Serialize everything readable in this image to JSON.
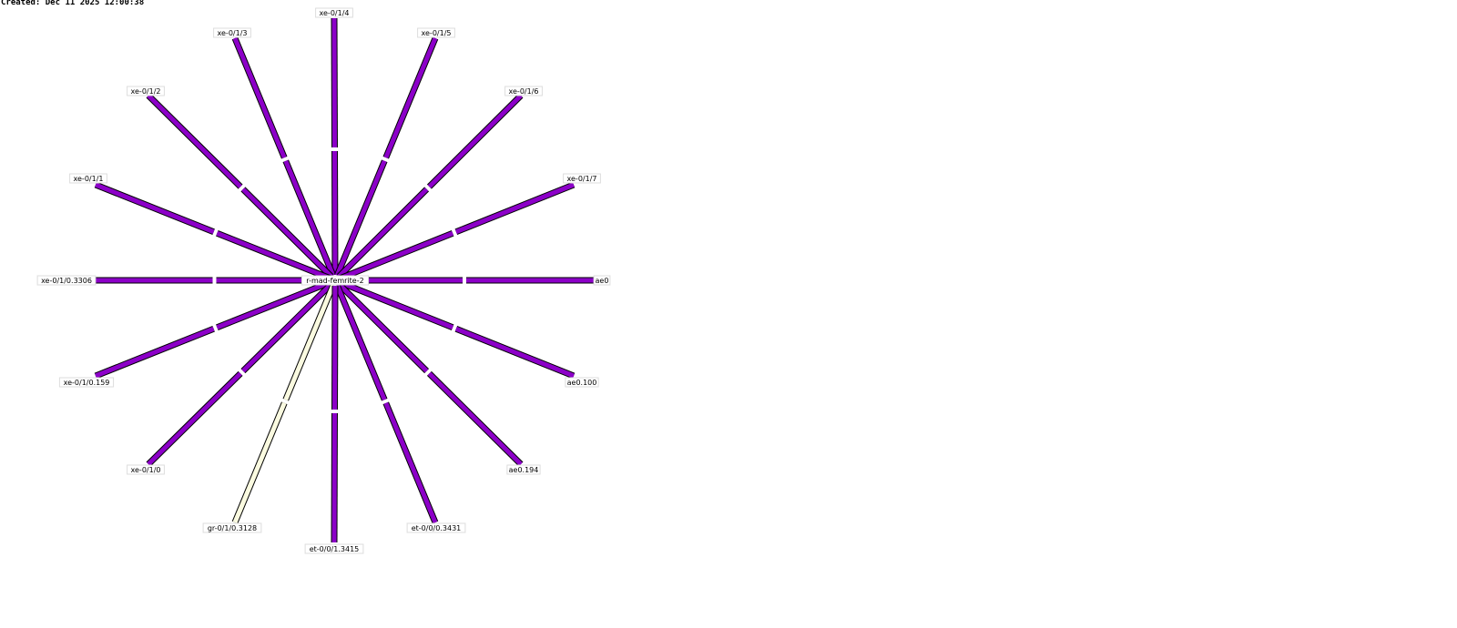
{
  "created": "Created: Dec 11 2025 12:00:38",
  "colors": {
    "link": "#8c00c8",
    "link_low": "#fafae0",
    "outline": "#000000"
  },
  "center_node": "r-mad-femrite-2",
  "links": [
    {
      "label": "xe-0/1/4",
      "color": "#8c00c8"
    },
    {
      "label": "xe-0/1/3",
      "color": "#8c00c8"
    },
    {
      "label": "xe-0/1/5",
      "color": "#8c00c8"
    },
    {
      "label": "xe-0/1/2",
      "color": "#8c00c8"
    },
    {
      "label": "xe-0/1/6",
      "color": "#8c00c8"
    },
    {
      "label": "xe-0/1/1",
      "color": "#8c00c8"
    },
    {
      "label": "xe-0/1/7",
      "color": "#8c00c8"
    },
    {
      "label": "xe-0/1/0.3306",
      "color": "#8c00c8"
    },
    {
      "label": "ae0",
      "color": "#8c00c8"
    },
    {
      "label": "xe-0/1/0.159",
      "color": "#8c00c8"
    },
    {
      "label": "ae0.100",
      "color": "#8c00c8"
    },
    {
      "label": "xe-0/1/0",
      "color": "#8c00c8"
    },
    {
      "label": "ae0.194",
      "color": "#8c00c8"
    },
    {
      "label": "gr-0/1/0.3128",
      "color": "#fafae0"
    },
    {
      "label": "et-0/0/0.3431",
      "color": "#8c00c8"
    },
    {
      "label": "et-0/0/1.3415",
      "color": "#8c00c8"
    }
  ]
}
